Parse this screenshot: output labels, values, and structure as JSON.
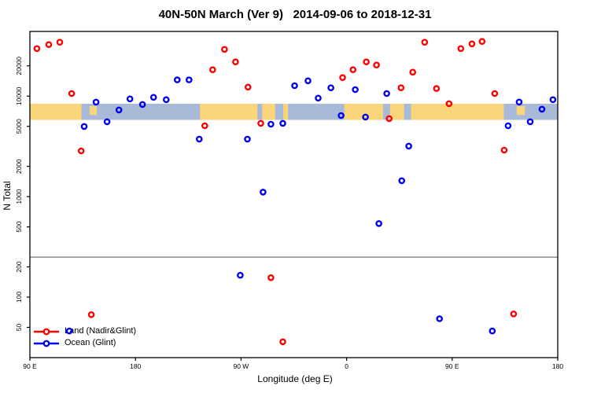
{
  "chart_data": {
    "type": "scatter",
    "title": "40N-50N March (Ver 9)   2014-09-06 to 2018-12-31",
    "xlabel": "Longitude (deg E)",
    "ylabel": "N Total",
    "x_axis": {
      "range_deg_e": [
        -270,
        180
      ],
      "ticks": [
        {
          "value": -270,
          "label": "90 E"
        },
        {
          "value": -180,
          "label": "180"
        },
        {
          "value": -90,
          "label": "90 W"
        },
        {
          "value": 0,
          "label": "0"
        },
        {
          "value": 90,
          "label": "90 E"
        },
        {
          "value": 180,
          "label": "180"
        }
      ]
    },
    "y_axis": {
      "scale": "log10",
      "range": [
        25,
        44000
      ],
      "ticks": [
        {
          "value": 50,
          "label": "50"
        },
        {
          "value": 100,
          "label": "100"
        },
        {
          "value": 200,
          "label": "200"
        },
        {
          "value": 500,
          "label": "500"
        },
        {
          "value": 1000,
          "label": "1000"
        },
        {
          "value": 2000,
          "label": "2000"
        },
        {
          "value": 5000,
          "label": "5000"
        },
        {
          "value": 10000,
          "label": "10000"
        },
        {
          "value": 20000,
          "label": "20000"
        }
      ]
    },
    "reference_line": {
      "value": 250,
      "color": "#8a8a8a"
    },
    "map_band": {
      "n_top": 8400,
      "n_bottom": 5800,
      "land_color": "#FAD57A",
      "ocean_color": "#A8BAD8",
      "ocean_segments": [
        {
          "from": -226,
          "to": -125
        },
        {
          "from": -76,
          "to": -72
        },
        {
          "from": -61,
          "to": -54
        },
        {
          "from": -50,
          "to": -2
        },
        {
          "from": 31,
          "to": 37
        },
        {
          "from": 49,
          "to": 55
        },
        {
          "from": 134,
          "to": 180
        }
      ],
      "land_patches": [
        {
          "from": -219,
          "to": -213
        },
        {
          "from": 145,
          "to": 152
        }
      ]
    },
    "series": [
      {
        "name": "Land (Nadir&Glint)",
        "color": "#FF0000",
        "points": [
          [
            -264.0,
            29700
          ],
          [
            -253.9,
            32600
          ],
          [
            -244.5,
            34400
          ],
          [
            -234.4,
            10600
          ],
          [
            -226.3,
            2850
          ],
          [
            -217.6,
            67
          ],
          [
            -120.9,
            5070
          ],
          [
            -114.2,
            18300
          ],
          [
            -104.1,
            29200
          ],
          [
            -94.7,
            21900
          ],
          [
            -84.0,
            12300
          ],
          [
            -73.2,
            5360
          ],
          [
            -64.5,
            156
          ],
          [
            -54.4,
            36
          ],
          [
            -3.4,
            15300
          ],
          [
            5.4,
            18300
          ],
          [
            16.8,
            21900
          ],
          [
            25.5,
            20400
          ],
          [
            36.3,
            5970
          ],
          [
            46.4,
            12100
          ],
          [
            56.4,
            17300
          ],
          [
            66.5,
            34400
          ],
          [
            76.6,
            11900
          ],
          [
            87.3,
            8410
          ],
          [
            97.4,
            29700
          ],
          [
            106.8,
            33100
          ],
          [
            115.5,
            35000
          ],
          [
            126.3,
            10600
          ],
          [
            134.3,
            2900
          ],
          [
            142.4,
            68
          ]
        ]
      },
      {
        "name": "Ocean (Glint)",
        "color": "#0000EE",
        "points": [
          [
            -236.4,
            46
          ],
          [
            -223.7,
            4990
          ],
          [
            -213.6,
            8710
          ],
          [
            -204.2,
            5560
          ],
          [
            -194.1,
            7280
          ],
          [
            -184.7,
            9380
          ],
          [
            -174.0,
            8260
          ],
          [
            -164.6,
            9730
          ],
          [
            -153.8,
            9210
          ],
          [
            -144.4,
            14500
          ],
          [
            -134.3,
            14500
          ],
          [
            -125.6,
            3730
          ],
          [
            -90.7,
            165
          ],
          [
            -84.6,
            3730
          ],
          [
            -71.2,
            1110
          ],
          [
            -64.5,
            5260
          ],
          [
            -54.4,
            5360
          ],
          [
            -44.3,
            12700
          ],
          [
            -32.9,
            14200
          ],
          [
            -24.2,
            9550
          ],
          [
            -13.4,
            12100
          ],
          [
            -4.7,
            6410
          ],
          [
            7.4,
            11600
          ],
          [
            16.1,
            6190
          ],
          [
            27.5,
            540
          ],
          [
            34.2,
            10600
          ],
          [
            47.0,
            1440
          ],
          [
            53.0,
            3180
          ],
          [
            79.2,
            61
          ],
          [
            124.2,
            46
          ],
          [
            137.7,
            5070
          ],
          [
            147.1,
            8730
          ],
          [
            156.5,
            5560
          ],
          [
            166.5,
            7410
          ],
          [
            175.9,
            9210
          ]
        ]
      }
    ],
    "legend": {
      "position": "bottom-left",
      "entries": [
        "Land (Nadir&Glint)",
        "Ocean (Glint)"
      ]
    }
  }
}
